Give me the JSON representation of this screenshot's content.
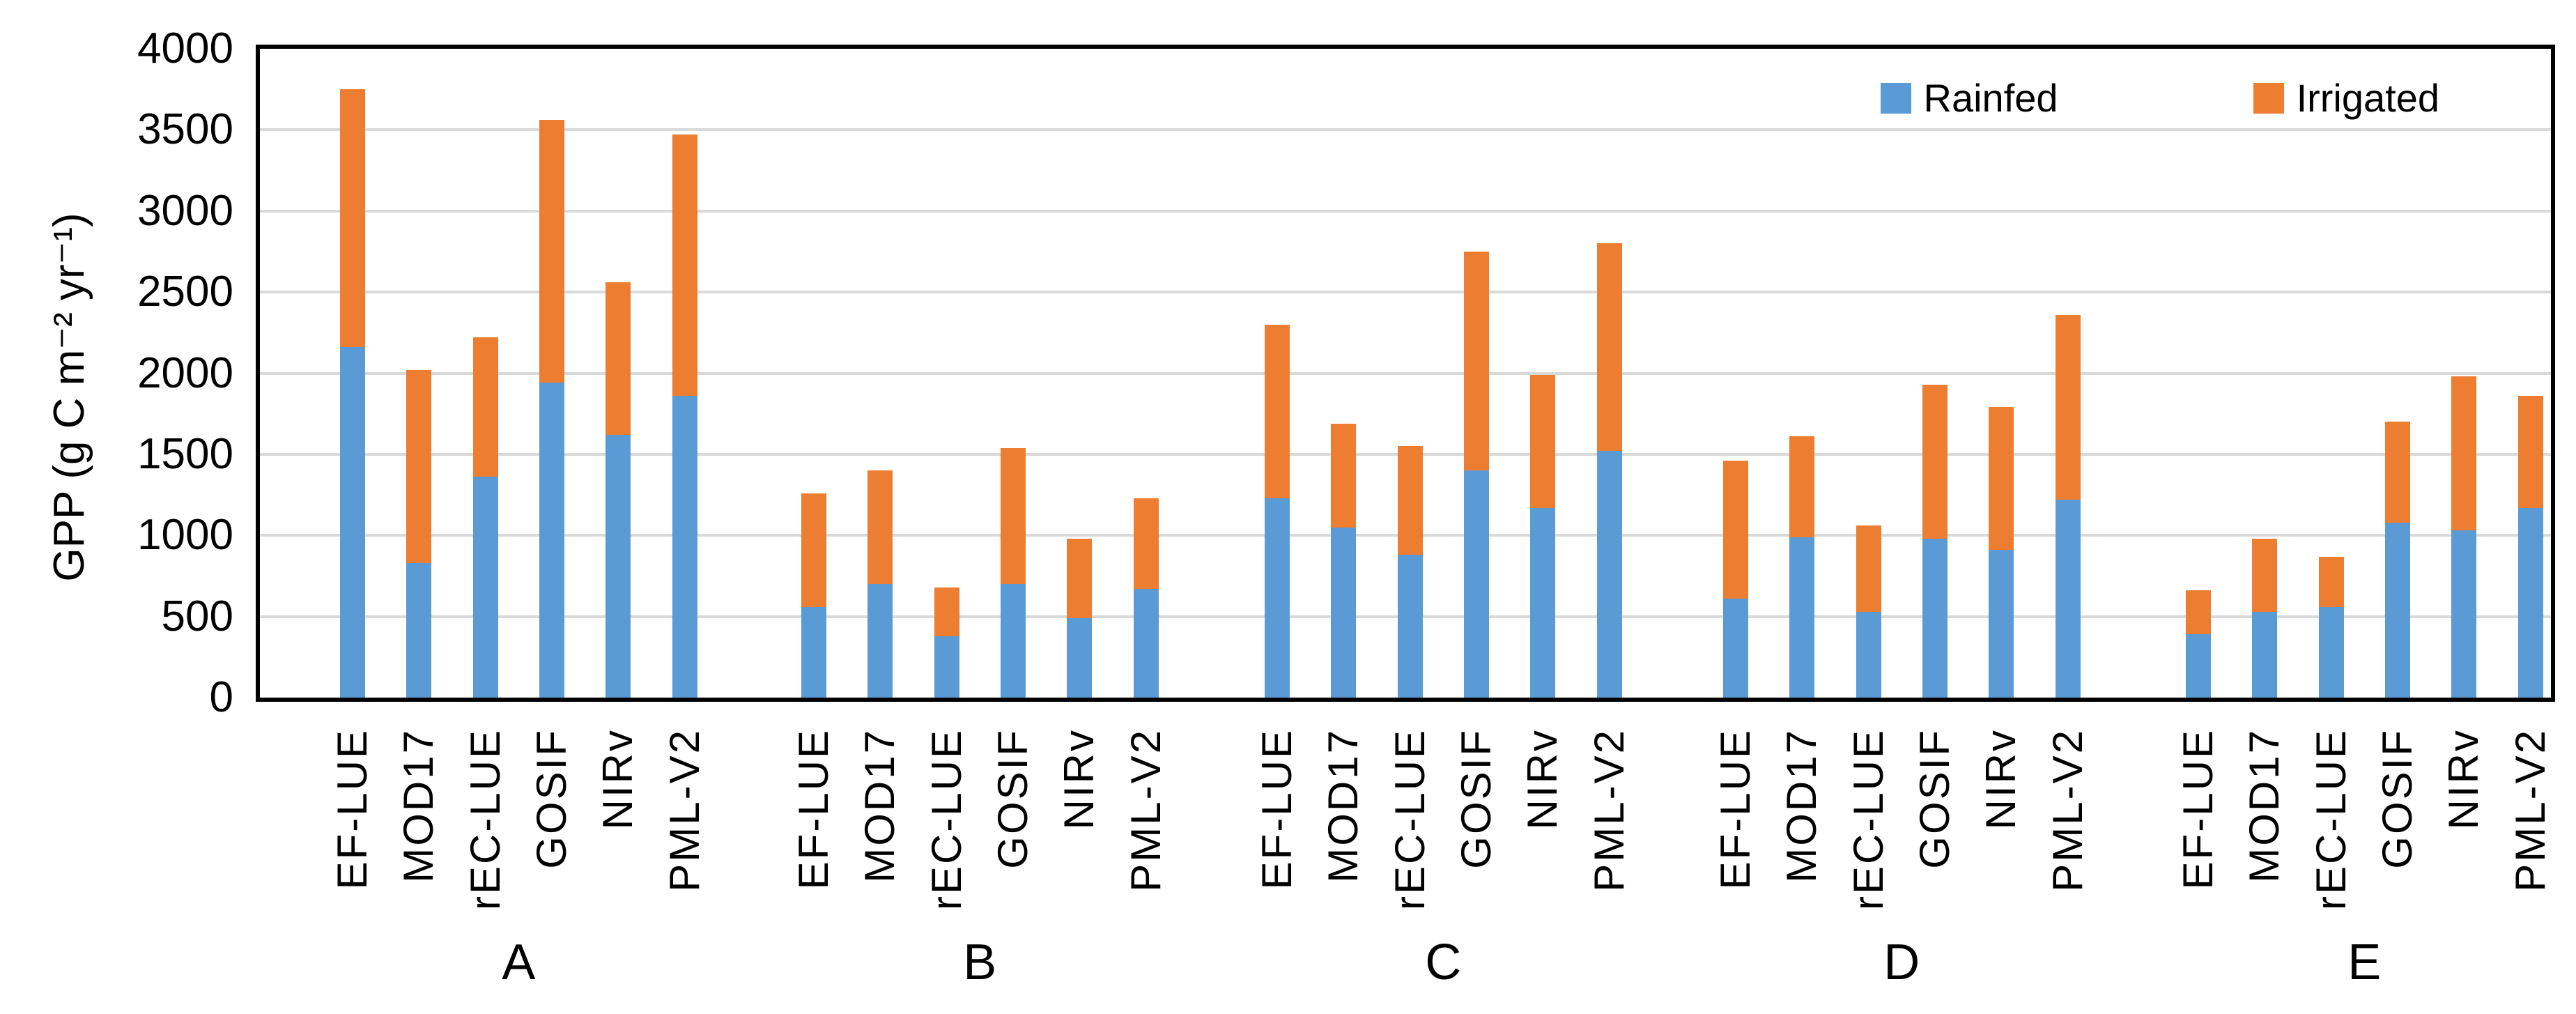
{
  "chart_data": {
    "type": "bar",
    "stacked": true,
    "title": "",
    "xlabel": "",
    "ylabel": "GPP (g C m⁻² yr⁻¹)",
    "ylim": [
      0,
      4000
    ],
    "ytick_step": 500,
    "y_ticks": [
      0,
      500,
      1000,
      1500,
      2000,
      2500,
      3000,
      3500,
      4000
    ],
    "grid": true,
    "legend_position": "top-right",
    "legend": [
      "Rainfed",
      "Irrigated"
    ],
    "colors": {
      "rainfed": "#5B9BD5",
      "irrigated": "#ED7D31",
      "gridline": "#D9D9D9",
      "axis": "#000000",
      "text": "#000000"
    },
    "categories": [
      "EF-LUE",
      "MOD17",
      "rEC-LUE",
      "GOSIF",
      "NIRv",
      "PML-V2"
    ],
    "groups": [
      {
        "label": "A",
        "series": {
          "rainfed": [
            2160,
            830,
            1360,
            1940,
            1620,
            1860
          ],
          "irrigated": [
            1590,
            1190,
            860,
            1620,
            940,
            1610
          ]
        },
        "totals": [
          3750,
          2020,
          2220,
          3560,
          2560,
          3470
        ]
      },
      {
        "label": "B",
        "series": {
          "rainfed": [
            560,
            700,
            380,
            700,
            490,
            670
          ],
          "irrigated": [
            700,
            700,
            300,
            840,
            490,
            560
          ]
        },
        "totals": [
          1260,
          1400,
          680,
          1540,
          980,
          1230
        ]
      },
      {
        "label": "C",
        "series": {
          "rainfed": [
            1230,
            1050,
            880,
            1400,
            1170,
            1520
          ],
          "irrigated": [
            1070,
            640,
            670,
            1350,
            820,
            1280
          ]
        },
        "totals": [
          2300,
          1690,
          1550,
          2750,
          1990,
          2800
        ]
      },
      {
        "label": "D",
        "series": {
          "rainfed": [
            610,
            990,
            530,
            980,
            910,
            1220
          ],
          "irrigated": [
            850,
            620,
            530,
            950,
            880,
            1140
          ]
        },
        "totals": [
          1460,
          1610,
          1060,
          1930,
          1790,
          2360
        ]
      },
      {
        "label": "E",
        "series": {
          "rainfed": [
            390,
            530,
            560,
            1080,
            1030,
            1170
          ],
          "irrigated": [
            270,
            450,
            310,
            620,
            950,
            690
          ]
        },
        "totals": [
          660,
          980,
          870,
          1700,
          1980,
          1860
        ]
      }
    ]
  }
}
